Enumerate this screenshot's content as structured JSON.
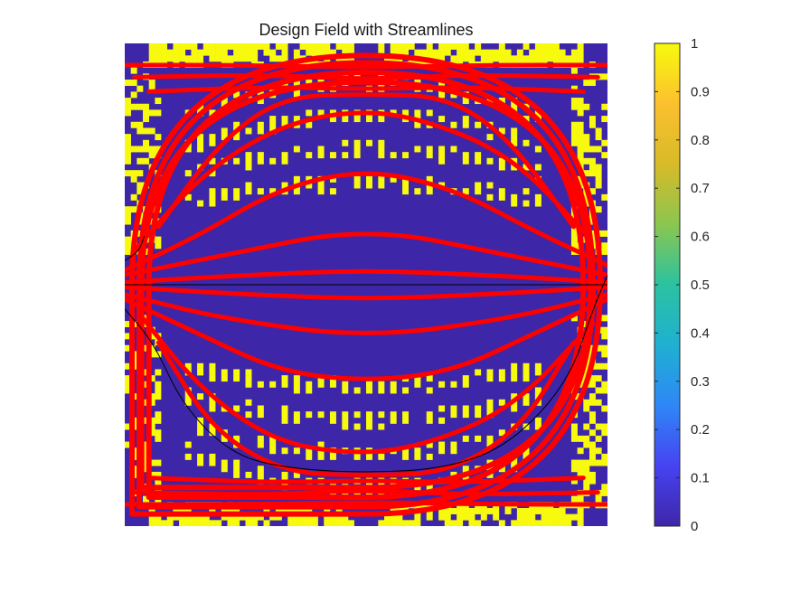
{
  "chart_data": {
    "type": "heatmap",
    "title": "Design Field with Streamlines",
    "colorbar": {
      "colormap": "parula",
      "ticks": [
        "0",
        "0.1",
        "0.2",
        "0.3",
        "0.4",
        "0.5",
        "0.6",
        "0.7",
        "0.8",
        "0.9",
        "1"
      ],
      "tick_values": [
        0,
        0.1,
        0.2,
        0.3,
        0.4,
        0.5,
        0.6,
        0.7,
        0.8,
        0.9,
        1
      ],
      "range": [
        0,
        1
      ],
      "stops": [
        "#3e26a8",
        "#4643f2",
        "#2e87f7",
        "#1fb0d1",
        "#2ac2a0",
        "#8bc650",
        "#d8ba28",
        "#fcc02e",
        "#f8fa0d"
      ]
    },
    "field": {
      "grid_cols": 80,
      "grid_rows": 80,
      "low_value": 0,
      "high_value": 1,
      "low_color": "#3e26a8",
      "high_color": "#f8fa0d",
      "description_of_pattern": "binary design; solid bands along top/bottom/left/right walls, arcs of vertical dashes bowing toward center, symmetric about horizontal midline"
    },
    "streamlines": {
      "color": "#ff0000",
      "thin_color": "#000000",
      "count_red": 20,
      "count_black": 3,
      "domain": {
        "x": [
          0,
          1
        ],
        "y": [
          0,
          1
        ]
      },
      "red_lines_upper": [
        [
          [
            0.0,
            0.955
          ],
          [
            0.25,
            0.955
          ],
          [
            0.5,
            0.95
          ],
          [
            0.75,
            0.955
          ],
          [
            1.0,
            0.955
          ]
        ],
        [
          [
            0.02,
            0.93
          ],
          [
            0.3,
            0.935
          ],
          [
            0.5,
            0.925
          ],
          [
            0.7,
            0.935
          ],
          [
            0.98,
            0.93
          ]
        ],
        [
          [
            0.05,
            0.9
          ],
          [
            0.3,
            0.91
          ],
          [
            0.5,
            0.905
          ],
          [
            0.7,
            0.91
          ],
          [
            0.95,
            0.9
          ]
        ],
        [
          [
            0.07,
            0.62
          ],
          [
            0.2,
            0.8
          ],
          [
            0.33,
            0.89
          ],
          [
            0.5,
            0.895
          ],
          [
            0.67,
            0.89
          ],
          [
            0.8,
            0.8
          ],
          [
            0.93,
            0.62
          ]
        ],
        [
          [
            0.02,
            0.57
          ],
          [
            0.15,
            0.72
          ],
          [
            0.3,
            0.82
          ],
          [
            0.45,
            0.86
          ],
          [
            0.6,
            0.85
          ],
          [
            0.8,
            0.77
          ],
          [
            0.96,
            0.6
          ]
        ],
        [
          [
            0.0,
            0.53
          ],
          [
            0.15,
            0.6
          ],
          [
            0.32,
            0.7
          ],
          [
            0.5,
            0.74
          ],
          [
            0.68,
            0.7
          ],
          [
            0.85,
            0.61
          ],
          [
            1.0,
            0.54
          ]
        ],
        [
          [
            0.0,
            0.52
          ],
          [
            0.2,
            0.56
          ],
          [
            0.5,
            0.62
          ],
          [
            0.8,
            0.56
          ],
          [
            1.0,
            0.52
          ]
        ],
        [
          [
            0.0,
            0.505
          ],
          [
            0.25,
            0.52
          ],
          [
            0.5,
            0.53
          ],
          [
            0.75,
            0.52
          ],
          [
            1.0,
            0.505
          ]
        ]
      ],
      "red_lines_lower": [
        [
          [
            0.0,
            0.495
          ],
          [
            0.25,
            0.48
          ],
          [
            0.5,
            0.47
          ],
          [
            0.75,
            0.48
          ],
          [
            1.0,
            0.495
          ]
        ],
        [
          [
            0.0,
            0.48
          ],
          [
            0.2,
            0.43
          ],
          [
            0.5,
            0.39
          ],
          [
            0.8,
            0.43
          ],
          [
            1.0,
            0.48
          ]
        ],
        [
          [
            0.0,
            0.47
          ],
          [
            0.15,
            0.4
          ],
          [
            0.32,
            0.32
          ],
          [
            0.5,
            0.3
          ],
          [
            0.68,
            0.32
          ],
          [
            0.85,
            0.4
          ],
          [
            1.0,
            0.47
          ]
        ],
        [
          [
            0.03,
            0.44
          ],
          [
            0.15,
            0.29
          ],
          [
            0.3,
            0.18
          ],
          [
            0.45,
            0.15
          ],
          [
            0.6,
            0.16
          ],
          [
            0.8,
            0.24
          ],
          [
            0.97,
            0.42
          ]
        ],
        [
          [
            0.07,
            0.38
          ],
          [
            0.18,
            0.2
          ],
          [
            0.33,
            0.11
          ],
          [
            0.5,
            0.105
          ],
          [
            0.67,
            0.11
          ],
          [
            0.82,
            0.2
          ],
          [
            0.93,
            0.38
          ]
        ],
        [
          [
            0.05,
            0.1
          ],
          [
            0.3,
            0.09
          ],
          [
            0.5,
            0.095
          ],
          [
            0.7,
            0.09
          ],
          [
            0.95,
            0.1
          ]
        ],
        [
          [
            0.02,
            0.07
          ],
          [
            0.3,
            0.065
          ],
          [
            0.5,
            0.075
          ],
          [
            0.7,
            0.065
          ],
          [
            0.98,
            0.07
          ]
        ],
        [
          [
            0.0,
            0.045
          ],
          [
            0.25,
            0.045
          ],
          [
            0.5,
            0.05
          ],
          [
            0.75,
            0.045
          ],
          [
            1.0,
            0.045
          ]
        ]
      ],
      "red_wall_loops": [
        [
          [
            0.03,
            0.04
          ],
          [
            0.03,
            0.96
          ],
          [
            0.97,
            0.96
          ],
          [
            0.97,
            0.04
          ],
          [
            0.03,
            0.04
          ]
        ],
        [
          [
            0.05,
            0.06
          ],
          [
            0.05,
            0.94
          ],
          [
            0.95,
            0.94
          ],
          [
            0.95,
            0.06
          ],
          [
            0.05,
            0.06
          ]
        ],
        [
          [
            0.015,
            0.025
          ],
          [
            0.015,
            0.975
          ],
          [
            0.985,
            0.975
          ],
          [
            0.985,
            0.025
          ],
          [
            0.015,
            0.025
          ]
        ],
        [
          [
            0.035,
            0.08
          ],
          [
            0.035,
            0.92
          ],
          [
            0.965,
            0.92
          ],
          [
            0.965,
            0.08
          ],
          [
            0.035,
            0.08
          ]
        ]
      ],
      "black_lines": [
        [
          [
            0.0,
            0.5
          ],
          [
            1.0,
            0.5
          ]
        ],
        [
          [
            0.0,
            0.45
          ],
          [
            0.06,
            0.38
          ],
          [
            0.12,
            0.25
          ],
          [
            0.22,
            0.15
          ],
          [
            0.33,
            0.12
          ],
          [
            0.5,
            0.11
          ],
          [
            0.67,
            0.12
          ],
          [
            0.8,
            0.17
          ],
          [
            0.92,
            0.3
          ],
          [
            0.97,
            0.45
          ],
          [
            1.0,
            0.52
          ]
        ],
        [
          [
            0.0,
            0.55
          ],
          [
            0.03,
            0.57
          ],
          [
            0.04,
            0.6
          ]
        ]
      ]
    }
  }
}
